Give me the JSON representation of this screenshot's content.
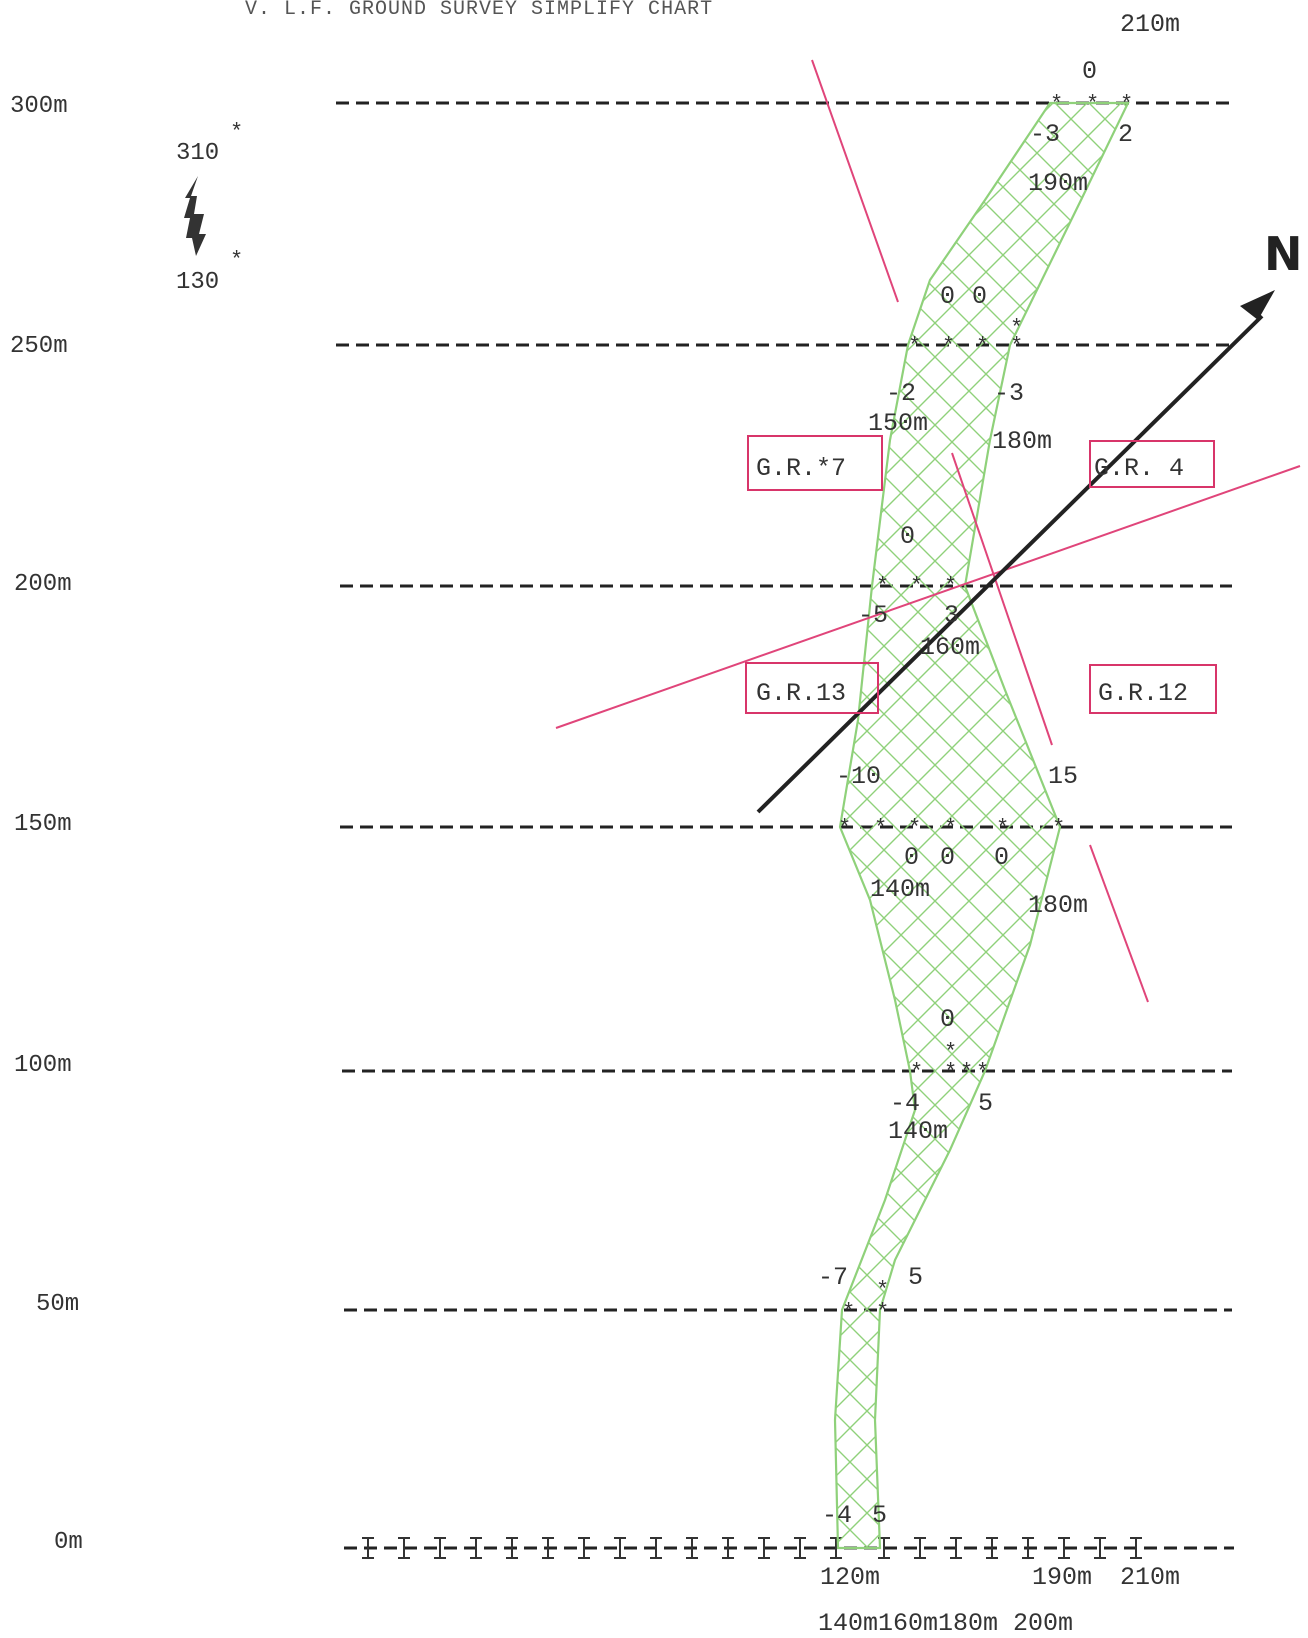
{
  "title": "V. L.F. GROUND SURVEY SIMPLIFY CHART",
  "north_label": "N",
  "bearing": {
    "top": "310",
    "bottom": "130",
    "mark": "*"
  },
  "y_axis": [
    {
      "label": "300m",
      "y": 300
    },
    {
      "label": "250m",
      "y": 250
    },
    {
      "label": "200m",
      "y": 200
    },
    {
      "label": "150m",
      "y": 150
    },
    {
      "label": "100m",
      "y": 100
    },
    {
      "label": "50m",
      "y": 50
    },
    {
      "label": "0m",
      "y": 0
    }
  ],
  "geophones": [
    {
      "label": "G.R.*7"
    },
    {
      "label": "G.R. 4"
    },
    {
      "label": "G.R.13"
    },
    {
      "label": "G.R.12"
    }
  ],
  "readings": [
    {
      "line": "300m",
      "values": [
        "0",
        "-3",
        "2"
      ],
      "distances": [
        "210m",
        "190m"
      ]
    },
    {
      "line": "250m",
      "values": [
        "0",
        "0",
        "-2",
        "-3"
      ],
      "distances": [
        "150m",
        "180m"
      ]
    },
    {
      "line": "200m",
      "values": [
        "0",
        "-5",
        "3"
      ],
      "distances": [
        "160m"
      ]
    },
    {
      "line": "150m",
      "values": [
        "-10",
        "15",
        "0",
        "0",
        "0"
      ],
      "distances": [
        "140m",
        "180m"
      ]
    },
    {
      "line": "100m",
      "values": [
        "0",
        "-4",
        "5"
      ],
      "distances": [
        "140m"
      ]
    },
    {
      "line": "50m",
      "values": [
        "-7",
        "5"
      ],
      "distances": []
    },
    {
      "line": "0m",
      "values": [
        "-4",
        "5"
      ],
      "distances": [
        "120m",
        "190m",
        "210m",
        "140m160m180m 200m"
      ]
    }
  ],
  "colors": {
    "anomaly": "#8fd17a",
    "fault": "#e0457a",
    "lines": "#222222",
    "box": "#d8356a"
  }
}
